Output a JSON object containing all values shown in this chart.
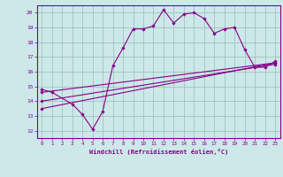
{
  "bg_color": "#cce8e8",
  "line_color": "#880088",
  "grid_color": "#99bbbb",
  "xlabel": "Windchill (Refroidissement éolien,°C)",
  "xlim": [
    -0.5,
    23.5
  ],
  "ylim": [
    11.5,
    20.5
  ],
  "yticks": [
    12,
    13,
    14,
    15,
    16,
    17,
    18,
    19,
    20
  ],
  "xticks": [
    0,
    1,
    2,
    3,
    4,
    5,
    6,
    7,
    8,
    9,
    10,
    11,
    12,
    13,
    14,
    15,
    16,
    17,
    18,
    19,
    20,
    21,
    22,
    23
  ],
  "series": [
    {
      "x": [
        0,
        1,
        3,
        4,
        5,
        6,
        7,
        8,
        9,
        10,
        11,
        12,
        13,
        14,
        15,
        16,
        17,
        18,
        19,
        20,
        21,
        22,
        23
      ],
      "y": [
        14.8,
        14.6,
        13.8,
        13.1,
        12.1,
        13.3,
        16.4,
        17.6,
        18.9,
        18.9,
        19.1,
        20.2,
        19.3,
        19.9,
        20.0,
        19.6,
        18.6,
        18.9,
        19.0,
        17.5,
        16.3,
        16.3,
        16.7
      ]
    },
    {
      "x": [
        0,
        23
      ],
      "y": [
        14.0,
        16.5
      ]
    },
    {
      "x": [
        0,
        23
      ],
      "y": [
        14.6,
        16.6
      ]
    },
    {
      "x": [
        0,
        23
      ],
      "y": [
        13.5,
        16.6
      ]
    }
  ]
}
